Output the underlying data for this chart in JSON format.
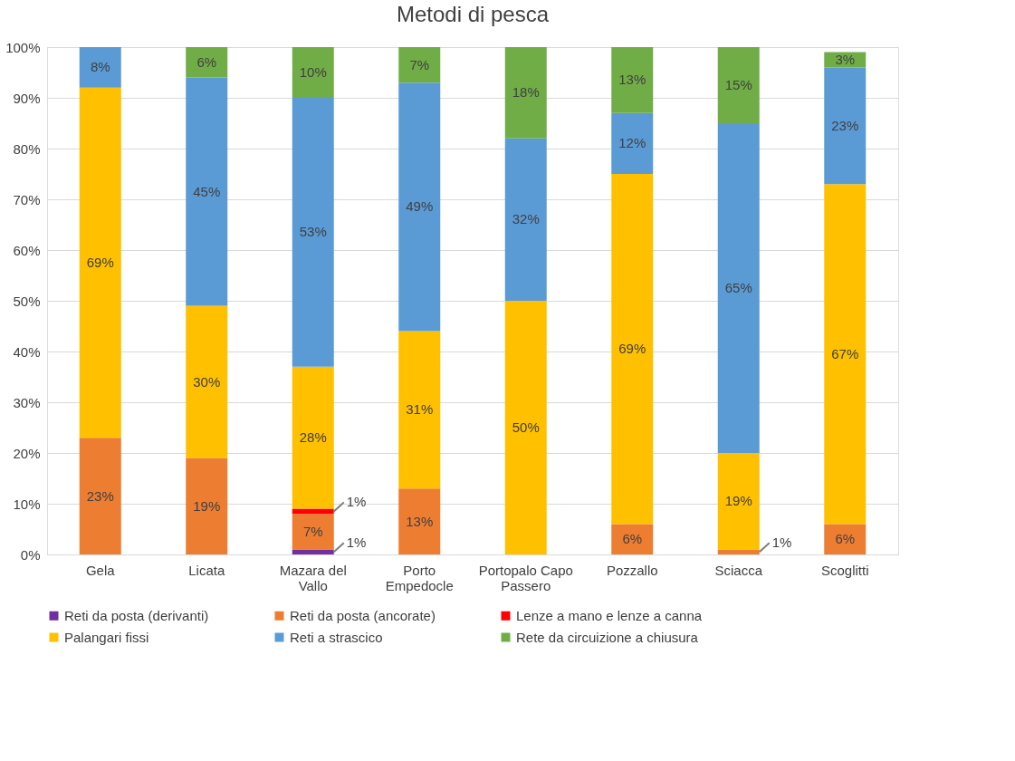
{
  "chart_data": {
    "type": "bar",
    "stacked": true,
    "title": "Metodi di pesca",
    "categories": [
      "Gela",
      "Licata",
      "Mazara del Vallo",
      "Porto Empedocle",
      "Portopalo Capo Passero",
      "Pozzallo",
      "Sciacca",
      "Scoglitti"
    ],
    "series": [
      {
        "name": "Reti da posta (derivanti)",
        "color": "#7030a0",
        "values": [
          null,
          null,
          1,
          null,
          null,
          null,
          null,
          null
        ],
        "value_labels": [
          null,
          null,
          "1%",
          null,
          null,
          null,
          null,
          null
        ]
      },
      {
        "name": "Reti da posta (ancorate)",
        "color": "#ed7d31",
        "values": [
          23,
          19,
          7,
          13,
          null,
          6,
          1,
          6
        ],
        "value_labels": [
          "23%",
          "19%",
          "7%",
          "13%",
          null,
          "6%",
          "1%",
          "6%"
        ]
      },
      {
        "name": "Lenze a mano e lenze a canna",
        "color": "#ff0000",
        "values": [
          null,
          null,
          1,
          null,
          null,
          null,
          null,
          null
        ],
        "value_labels": [
          null,
          null,
          "1%",
          null,
          null,
          null,
          null,
          null
        ]
      },
      {
        "name": "Palangari fissi",
        "color": "#ffc000",
        "values": [
          69,
          30,
          28,
          31,
          50,
          69,
          19,
          67
        ],
        "value_labels": [
          "69%",
          "30%",
          "28%",
          "31%",
          "50%",
          "69%",
          "19%",
          "67%"
        ]
      },
      {
        "name": "Reti a strascico",
        "color": "#5b9bd5",
        "values": [
          8,
          45,
          53,
          49,
          32,
          12,
          65,
          23
        ],
        "value_labels": [
          "8%",
          "45%",
          "53%",
          "49%",
          "32%",
          "12%",
          "65%",
          "23%"
        ]
      },
      {
        "name": "Rete da circuizione a chiusura",
        "color": "#70ad47",
        "values": [
          null,
          6,
          10,
          7,
          18,
          13,
          15,
          3
        ],
        "value_labels": [
          null,
          "6%",
          "10%",
          "7%",
          "18%",
          "13%",
          "15%",
          "3%"
        ]
      }
    ],
    "ylim": [
      0,
      100
    ],
    "yticks": [
      {
        "value": 0,
        "label": "0%"
      },
      {
        "value": 10,
        "label": "10%"
      },
      {
        "value": 20,
        "label": "20%"
      },
      {
        "value": 30,
        "label": "30%"
      },
      {
        "value": 40,
        "label": "40%"
      },
      {
        "value": 50,
        "label": "50%"
      },
      {
        "value": 60,
        "label": "60%"
      },
      {
        "value": 70,
        "label": "70%"
      },
      {
        "value": 80,
        "label": "80%"
      },
      {
        "value": 90,
        "label": "90%"
      },
      {
        "value": 100,
        "label": "100%"
      }
    ],
    "grid": "y",
    "legend": "bottom"
  }
}
